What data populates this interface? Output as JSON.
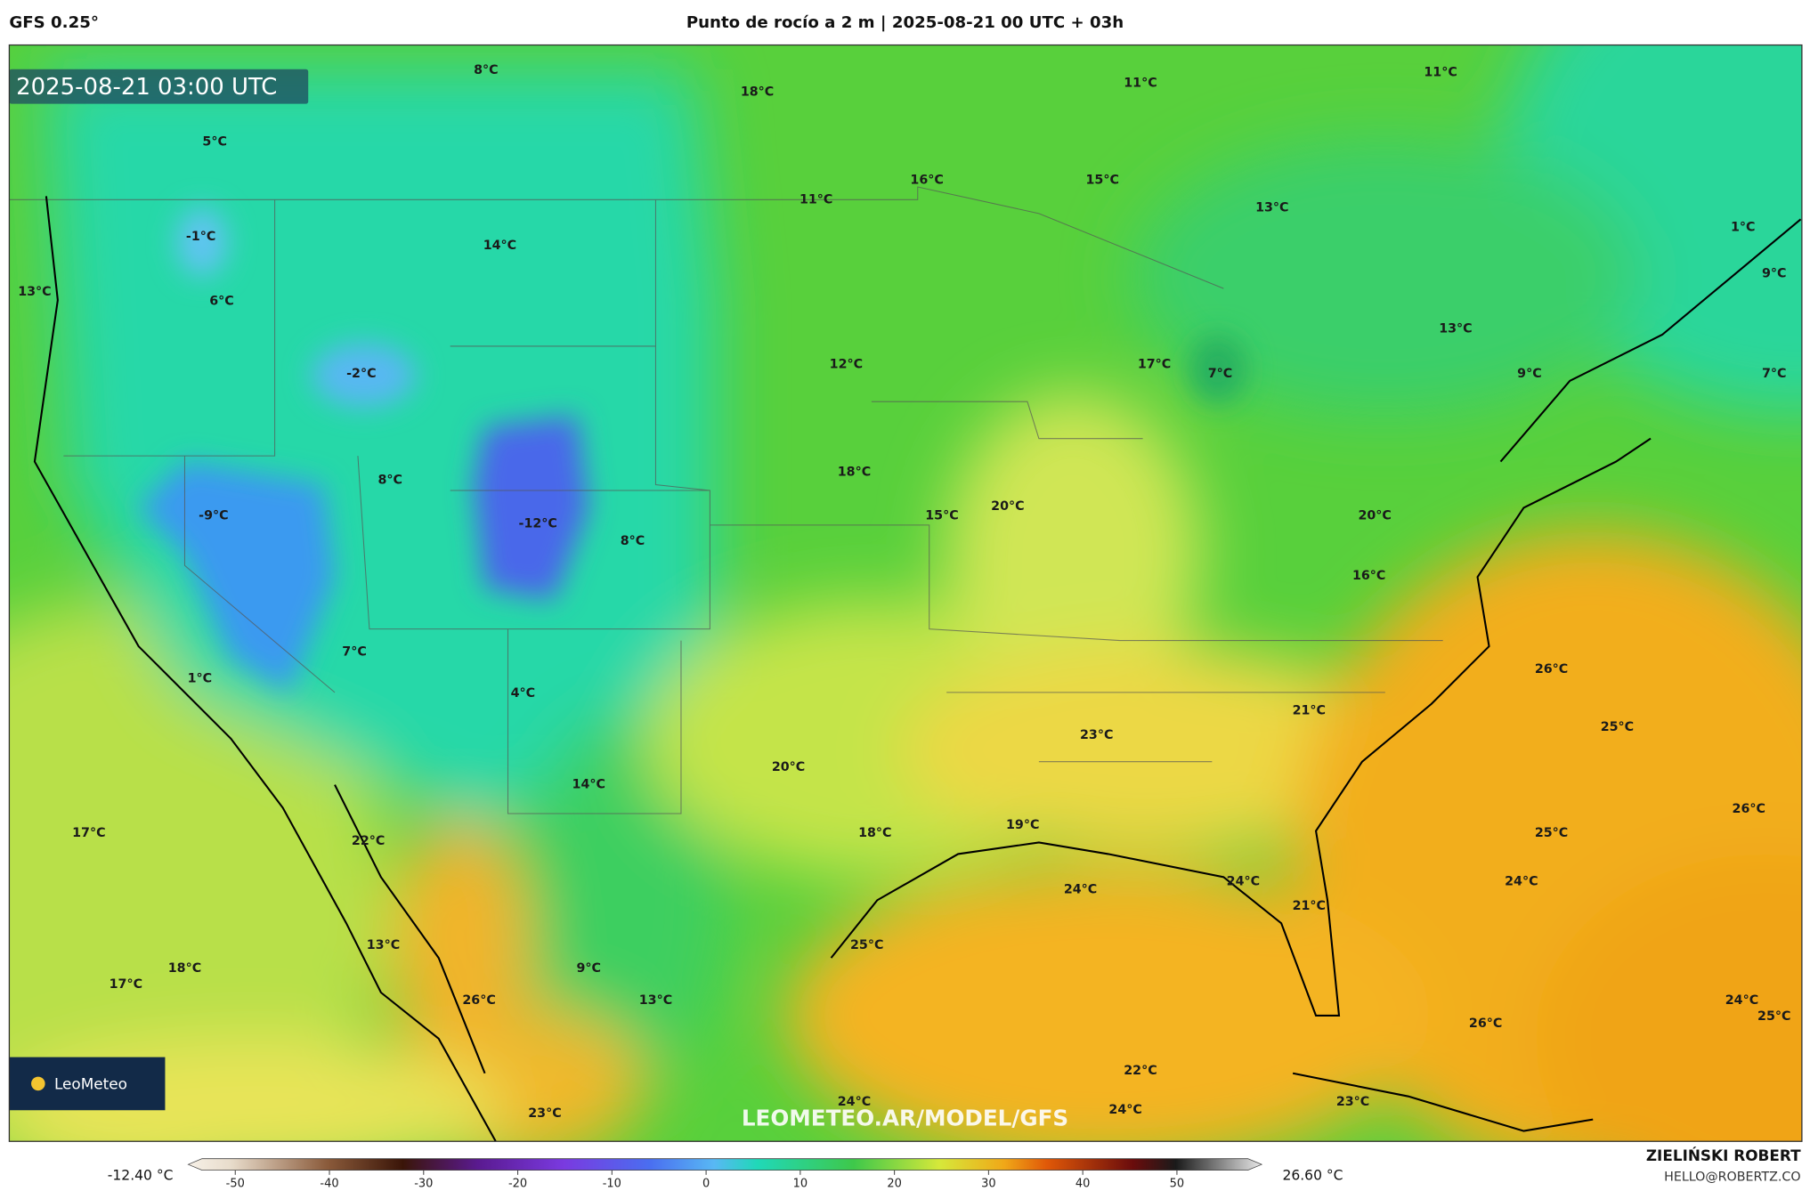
{
  "header": {
    "model": "GFS 0.25°",
    "title": "Punto de rocío a 2 m | 2025-08-21 00 UTC + 03h"
  },
  "map": {
    "timestamp": "2025-08-21 03:00 UTC",
    "labels": [
      "8°C",
      "18°C",
      "11°C",
      "11°C",
      "5°C",
      "16°C",
      "15°C",
      "11°C",
      "13°C",
      "-1°C",
      "14°C",
      "1°C",
      "13°C",
      "6°C",
      "9°C",
      "13°C",
      "-2°C",
      "12°C",
      "17°C",
      "7°C",
      "9°C",
      "7°C",
      "18°C",
      "8°C",
      "-9°C",
      "20°C",
      "15°C",
      "-12°C",
      "8°C",
      "20°C",
      "16°C",
      "7°C",
      "26°C",
      "1°C",
      "4°C",
      "21°C",
      "25°C",
      "23°C",
      "20°C",
      "14°C",
      "26°C",
      "17°C",
      "22°C",
      "18°C",
      "19°C",
      "25°C",
      "24°C",
      "24°C",
      "24°C",
      "21°C",
      "13°C",
      "25°C",
      "18°C",
      "17°C",
      "9°C",
      "13°C",
      "26°C",
      "24°C",
      "25°C",
      "26°C",
      "22°C",
      "24°C",
      "23°C",
      "24°C",
      "23°C"
    ],
    "logo": "LeoMeteo",
    "watermark": "LEOMETEO.AR/MODEL/GFS"
  },
  "colorbar": {
    "min_label": "-12.40 °C",
    "max_label": "26.60 °C",
    "lim": [
      -55,
      59
    ],
    "ticks": [
      -50,
      -40,
      -30,
      -20,
      -10,
      0,
      10,
      20,
      30,
      40,
      50
    ]
  },
  "credits": {
    "author": "ZIELIŃSKI ROBERT",
    "email": "HELLO@ROBERTZ.CO"
  }
}
